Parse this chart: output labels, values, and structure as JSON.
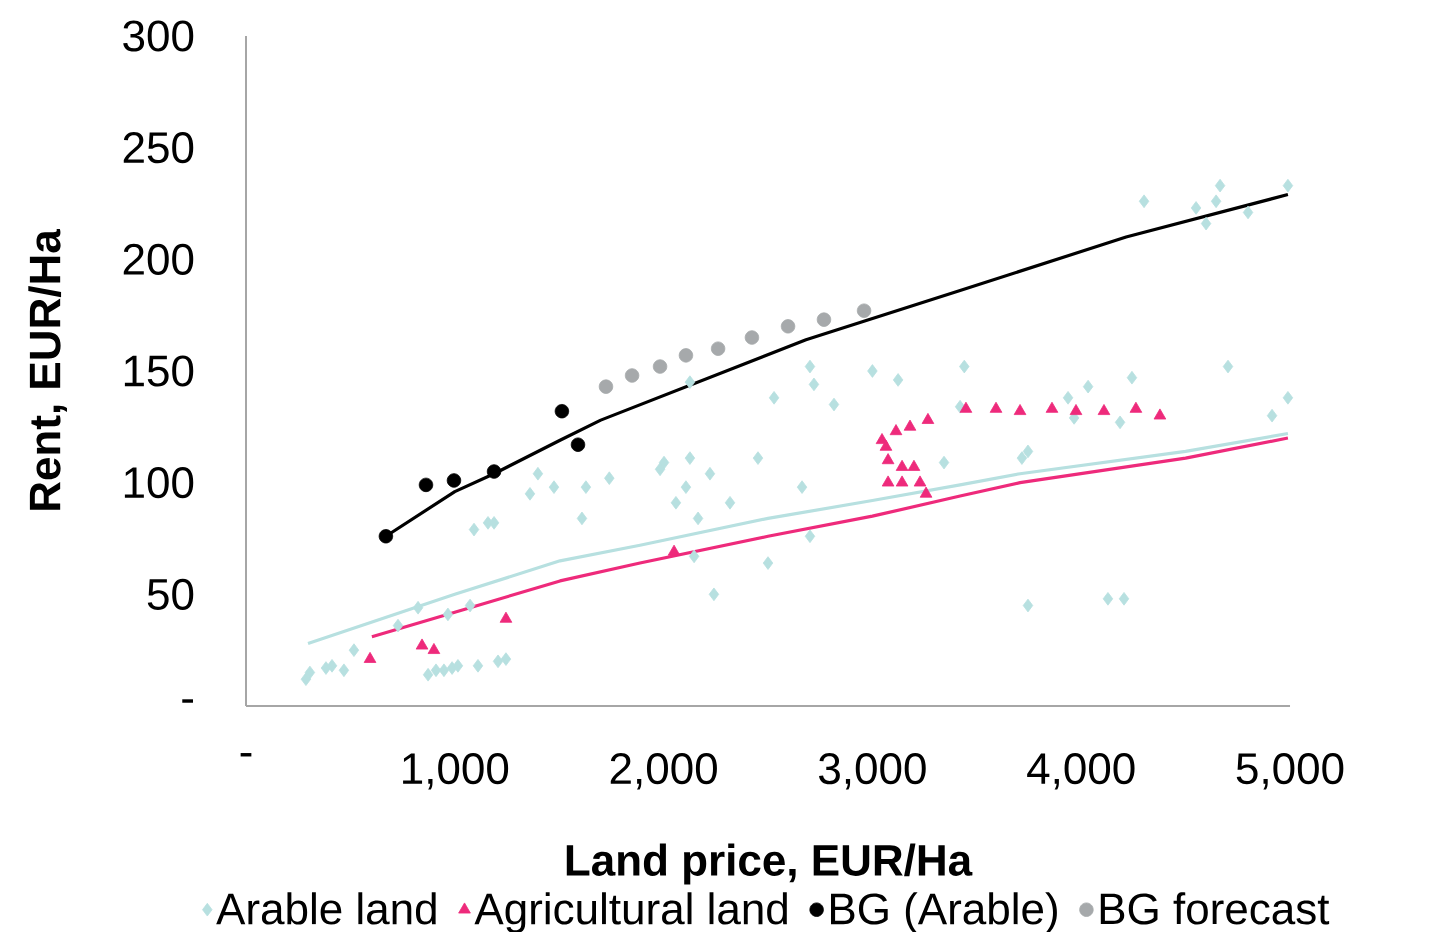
{
  "chart_data": {
    "type": "scatter",
    "xlabel": "Land price, EUR/Ha",
    "ylabel": "Rent, EUR/Ha",
    "xlim": [
      0,
      5000
    ],
    "ylim": [
      0,
      300
    ],
    "xticks": [
      {
        "value": 0,
        "label": "-"
      },
      {
        "value": 1000,
        "label": "1,000"
      },
      {
        "value": 2000,
        "label": "2,000"
      },
      {
        "value": 3000,
        "label": "3,000"
      },
      {
        "value": 4000,
        "label": "4,000"
      },
      {
        "value": 5000,
        "label": "5,000"
      }
    ],
    "yticks": [
      {
        "value": 0,
        "label": "-"
      },
      50,
      100,
      150,
      200,
      250,
      300
    ],
    "legend": "bottom",
    "series": [
      {
        "type": "line",
        "color": "#b7e0e0",
        "x": [
          297,
          1000,
          1504,
          1887,
          2500,
          3000,
          3420,
          3707,
          4500,
          4990
        ],
        "values": [
          28,
          50,
          65,
          72,
          84,
          92,
          99,
          104,
          114,
          122
        ]
      },
      {
        "type": "line",
        "color": "#ee2a7b",
        "x": [
          603,
          1000,
          1504,
          1887,
          2500,
          3000,
          3420,
          3707,
          4500,
          4990
        ],
        "values": [
          31,
          42,
          56,
          64,
          76,
          85,
          94,
          100,
          111,
          120
        ]
      },
      {
        "type": "line",
        "color": "#000000",
        "x": [
          670,
          1000,
          1188,
          1504,
          1699,
          2682,
          3420,
          4215,
          4990
        ],
        "values": [
          76,
          96,
          104,
          119,
          128,
          164,
          186,
          210,
          229
        ]
      },
      {
        "name": "Arable land",
        "marker": "diamond",
        "color": "#b7e0e0",
        "x": [
          287,
          306,
          383,
          412,
          469,
          517,
          728,
          824,
          872,
          910,
          948,
          987,
          1015,
          967,
          1073,
          1111,
          1207,
          1245,
          1092,
          1159,
          1188,
          1609,
          1398,
          1360,
          1475,
          1628,
          1740,
          2002,
          1983,
          2126,
          2107,
          2222,
          2059,
          2165,
          2318,
          2146,
          2241,
          2452,
          2529,
          2500,
          2663,
          2701,
          2701,
          2720,
          2816,
          3000,
          3123,
          3343,
          3440,
          2126,
          3420,
          3937,
          3966,
          4033,
          4186,
          4243,
          4703,
          4914,
          4990,
          3716,
          3745,
          3745,
          4128,
          4205,
          4301,
          4550,
          4598,
          4646,
          4665,
          4799,
          4990
        ],
        "values": [
          12,
          15,
          17,
          18,
          16,
          25,
          36,
          44,
          14,
          16,
          16,
          17,
          18,
          41,
          45,
          18,
          20,
          21,
          79,
          82,
          82,
          84,
          104,
          95,
          98,
          98,
          102,
          109,
          106,
          111,
          98,
          104,
          91,
          84,
          91,
          67,
          50,
          111,
          138,
          64,
          98,
          76,
          152,
          144,
          135,
          150,
          146,
          109,
          152,
          145,
          134,
          138,
          129,
          143,
          127,
          147,
          152,
          130,
          138,
          111,
          114,
          45,
          48,
          48,
          226,
          223,
          216,
          226,
          233,
          221,
          233
        ]
      },
      {
        "name": "Agricultural land",
        "marker": "triangle",
        "color": "#ee2a7b",
        "x": [
          594,
          843,
          900,
          1245,
          2050,
          3046,
          3065,
          3075,
          3075,
          3113,
          3142,
          3142,
          3180,
          3199,
          3228,
          3257,
          3266,
          3448,
          3592,
          3707,
          3860,
          3975,
          4109,
          4262,
          4377
        ],
        "values": [
          21,
          27,
          25,
          39,
          69,
          119,
          116,
          110,
          100,
          123,
          107,
          100,
          125,
          107,
          100,
          95,
          128,
          133,
          133,
          132,
          133,
          132,
          132,
          133,
          130
        ]
      },
      {
        "name": "BG (Arable)",
        "marker": "circle",
        "color": "#000000",
        "x": [
          670,
          862,
          996,
          1188,
          1513,
          1590
        ],
        "values": [
          76,
          99,
          101,
          105,
          132,
          117
        ]
      },
      {
        "name": "BG forecast",
        "marker": "circle",
        "color": "#a6a9ab",
        "x": [
          1724,
          1849,
          1983,
          2107,
          2261,
          2423,
          2596,
          2768,
          2960
        ],
        "values": [
          143,
          148,
          152,
          157,
          160,
          165,
          170,
          173,
          177
        ]
      }
    ]
  }
}
